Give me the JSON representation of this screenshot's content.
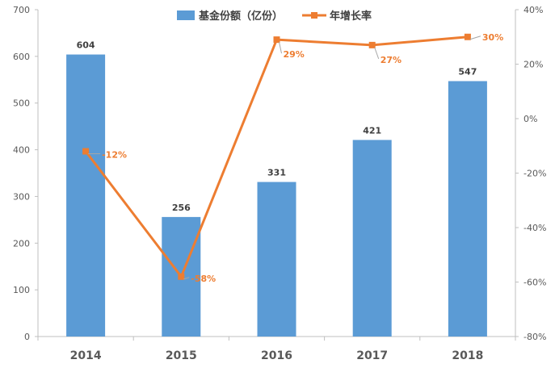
{
  "chart_data": {
    "type": "bar",
    "categories": [
      "2014",
      "2015",
      "2016",
      "2017",
      "2018"
    ],
    "series": [
      {
        "name": "基金份额（亿份）",
        "kind": "bar",
        "axis": "left",
        "color": "#5B9BD5",
        "values": [
          604,
          256,
          331,
          421,
          547
        ],
        "labels": [
          "604",
          "256",
          "331",
          "421",
          "547"
        ]
      },
      {
        "name": "年增长率",
        "kind": "line",
        "axis": "right",
        "color": "#ED7D31",
        "values": [
          -12,
          -58,
          29,
          27,
          30
        ],
        "labels": [
          "-12%",
          "-58%",
          "29%",
          "27%",
          "30%"
        ]
      }
    ],
    "ylim_left": [
      0,
      700
    ],
    "yticks_left": [
      "0",
      "100",
      "200",
      "300",
      "400",
      "500",
      "600",
      "700"
    ],
    "ylim_right": [
      -80,
      40
    ],
    "yticks_right": [
      "-80%",
      "-60%",
      "-40%",
      "-20%",
      "0%",
      "20%",
      "40%"
    ],
    "legend_position": "top",
    "grid": false
  }
}
